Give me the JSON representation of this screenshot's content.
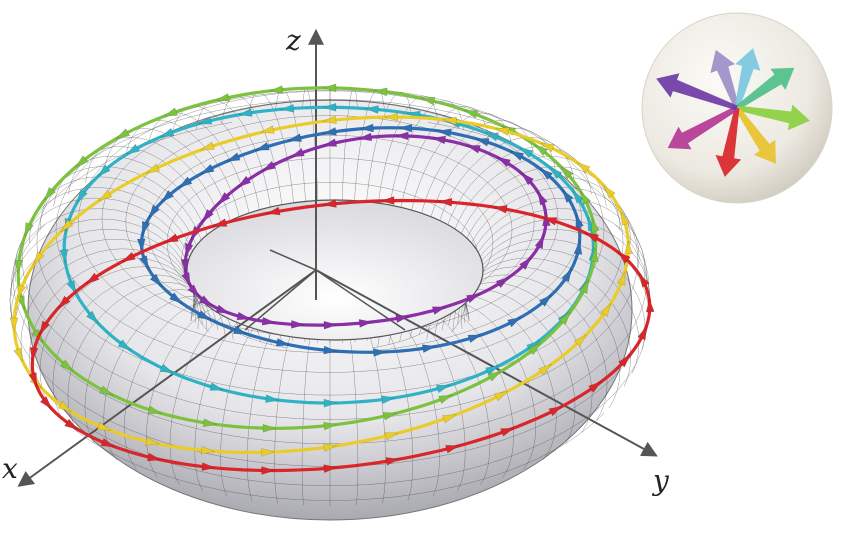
{
  "axes": {
    "x_label": "x",
    "y_label": "y",
    "z_label": "z"
  },
  "figure": {
    "surface": "torus",
    "surface_color": "#e9e9ec",
    "grid_color": "#3a3a3a",
    "curves": [
      {
        "name": "purple",
        "color": "#8a2fa6"
      },
      {
        "name": "blue",
        "color": "#2f6fb4"
      },
      {
        "name": "cyan",
        "color": "#2fb3c4"
      },
      {
        "name": "green",
        "color": "#7cc23e"
      },
      {
        "name": "yellow",
        "color": "#e9cc2a"
      },
      {
        "name": "red",
        "color": "#d8262b"
      }
    ],
    "legend_sphere": {
      "arrow_colors": [
        "#9a8fc8",
        "#79c7e0",
        "#4fbf8a",
        "#8bcf3f",
        "#e8c22c",
        "#d8262b",
        "#b43895",
        "#6e3aa5"
      ]
    }
  }
}
